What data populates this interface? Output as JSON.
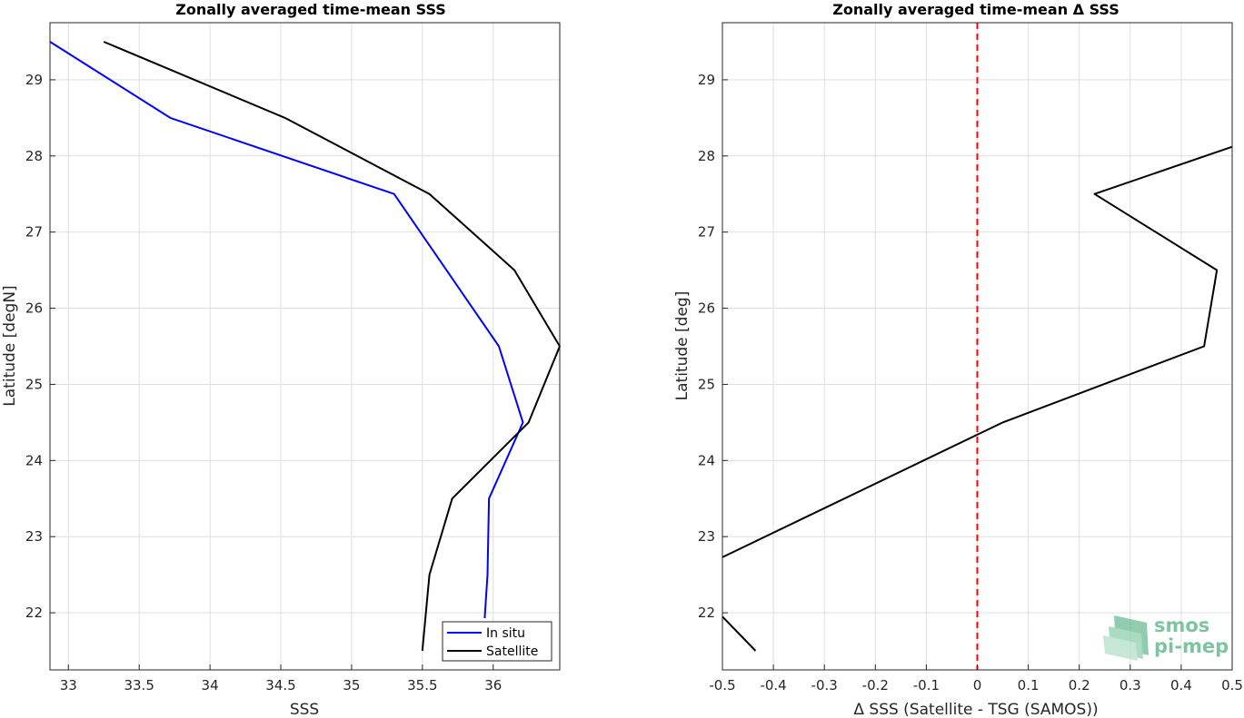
{
  "chart_data": [
    {
      "type": "line",
      "title": "Zonally averaged time-mean SSS",
      "xlabel": "SSS",
      "ylabel": "Latitude [degN]",
      "xlim": [
        32.87,
        36.47
      ],
      "ylim": [
        21.25,
        29.75
      ],
      "xticks": [
        33,
        33.5,
        34,
        34.5,
        35,
        35.5,
        36
      ],
      "xtick_labels": [
        "33",
        "33.5",
        "34",
        "34.5",
        "35",
        "35.5",
        "36"
      ],
      "yticks": [
        22,
        23,
        24,
        25,
        26,
        27,
        28,
        29
      ],
      "ytick_labels": [
        "22",
        "23",
        "24",
        "25",
        "26",
        "27",
        "28",
        "29"
      ],
      "grid": true,
      "legend_position": "bottom-right",
      "series": [
        {
          "name": "In situ",
          "color": "#0000ff",
          "points": [
            [
              32.87,
              29.5
            ],
            [
              33.72,
              28.5
            ],
            [
              35.3,
              27.5
            ],
            [
              36.04,
              25.5
            ],
            [
              36.21,
              24.5
            ],
            [
              35.97,
              23.5
            ],
            [
              35.96,
              22.5
            ],
            [
              35.94,
              21.93
            ]
          ]
        },
        {
          "name": "Satellite",
          "color": "#000000",
          "points": [
            [
              33.25,
              29.5
            ],
            [
              34.53,
              28.5
            ],
            [
              35.55,
              27.5
            ],
            [
              36.15,
              26.5
            ],
            [
              36.47,
              25.5
            ],
            [
              36.25,
              24.5
            ],
            [
              35.71,
              23.5
            ],
            [
              35.55,
              22.5
            ],
            [
              35.5,
              21.5
            ]
          ]
        }
      ]
    },
    {
      "type": "line",
      "title": "Zonally averaged time-mean Δ SSS",
      "xlabel": "Δ SSS (Satellite - TSG (SAMOS))",
      "ylabel": "Latitude [deg]",
      "xlim": [
        -0.5,
        0.5
      ],
      "ylim": [
        21.25,
        29.75
      ],
      "xticks": [
        -0.5,
        -0.4,
        -0.3,
        -0.2,
        -0.1,
        0,
        0.1,
        0.2,
        0.3,
        0.4,
        0.5
      ],
      "xtick_labels": [
        "-0.5",
        "-0.4",
        "-0.3",
        "-0.2",
        "-0.1",
        "0",
        "0.1",
        "0.2",
        "0.3",
        "0.4",
        "0.5"
      ],
      "yticks": [
        22,
        23,
        24,
        25,
        26,
        27,
        28,
        29
      ],
      "ytick_labels": [
        "22",
        "23",
        "24",
        "25",
        "26",
        "27",
        "28",
        "29"
      ],
      "grid": true,
      "reference_line": {
        "x": 0,
        "color": "#ff0000",
        "style": "dashed"
      },
      "series": [
        {
          "color": "#000000",
          "segments": [
            [
              [
                0.5,
                28.12
              ],
              [
                0.23,
                27.5
              ],
              [
                0.47,
                26.5
              ],
              [
                0.445,
                25.5
              ],
              [
                0.05,
                24.5
              ],
              [
                -0.5,
                22.73
              ]
            ],
            [
              [
                -0.5,
                21.95
              ],
              [
                -0.435,
                21.5
              ]
            ]
          ]
        }
      ]
    }
  ],
  "logo": {
    "line1": "smos",
    "line2": "pi-mep"
  }
}
